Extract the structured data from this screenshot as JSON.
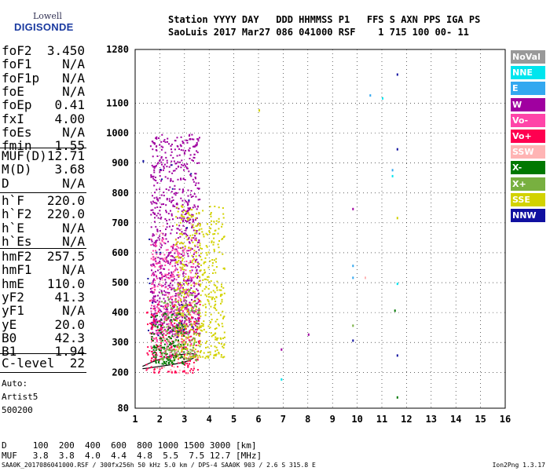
{
  "logo": {
    "line1": "Lowell",
    "line2": "DIGISONDE"
  },
  "header": {
    "labels": "Station YYYY DAY   DDD HHMMSS P1   FFS S AXN PPS IGA PS",
    "values": "SaoLuis 2017 Mar27 086 041000 RSF    1 715 100 00- 11"
  },
  "params_group1": [
    {
      "k": "foF2",
      "v": "3.450"
    },
    {
      "k": "foF1",
      "v": "N/A"
    },
    {
      "k": "foF1p",
      "v": "N/A"
    },
    {
      "k": "foE",
      "v": "N/A"
    },
    {
      "k": "foEp",
      "v": "0.41"
    },
    {
      "k": "fxI",
      "v": "4.00"
    },
    {
      "k": "foEs",
      "v": "N/A"
    },
    {
      "k": "fmin",
      "v": "1.55"
    }
  ],
  "params_group2": [
    {
      "k": "MUF(D)",
      "v": "12.71"
    },
    {
      "k": "M(D)",
      "v": "3.68"
    },
    {
      "k": "D",
      "v": "N/A"
    }
  ],
  "params_group3": [
    {
      "k": "h`F",
      "v": "220.0"
    },
    {
      "k": "h`F2",
      "v": "220.0"
    },
    {
      "k": "h`E",
      "v": "N/A"
    },
    {
      "k": "h`Es",
      "v": "N/A"
    }
  ],
  "params_group4": [
    {
      "k": "hmF2",
      "v": "257.5"
    },
    {
      "k": "hmF1",
      "v": "N/A"
    },
    {
      "k": "hmE",
      "v": "110.0"
    },
    {
      "k": "yF2",
      "v": "41.3"
    },
    {
      "k": "yF1",
      "v": "N/A"
    },
    {
      "k": "yE",
      "v": "20.0"
    },
    {
      "k": "B0",
      "v": "42.3"
    },
    {
      "k": "B1",
      "v": "1.94"
    }
  ],
  "params_group5": [
    {
      "k": "C-level",
      "v": "22"
    }
  ],
  "auto": [
    "Auto:",
    "Artist5",
    "500200"
  ],
  "legend": [
    {
      "label": "NoVal",
      "color": "#999999"
    },
    {
      "label": "NNE",
      "color": "#00e5ee"
    },
    {
      "label": "E",
      "color": "#33a8f0"
    },
    {
      "label": "W",
      "color": "#a000a0"
    },
    {
      "label": "Vo-",
      "color": "#ff44a8"
    },
    {
      "label": "Vo+",
      "color": "#ff0050"
    },
    {
      "label": "SSW",
      "color": "#ffb4b4"
    },
    {
      "label": "X-",
      "color": "#007800"
    },
    {
      "label": "X+",
      "color": "#78b040"
    },
    {
      "label": "SSE",
      "color": "#d2d200"
    },
    {
      "label": "NNW",
      "color": "#1010a0"
    }
  ],
  "chart_data": {
    "type": "scatter",
    "x_ticks": [
      "1",
      "2",
      "3",
      "4",
      "5",
      "6",
      "7",
      "8",
      "9",
      "10",
      "11",
      "12",
      "13",
      "14",
      "15",
      "16"
    ],
    "y_ticks": [
      "80",
      "200",
      "300",
      "400",
      "500",
      "600",
      "700",
      "800",
      "900",
      "1000",
      "1100",
      "1280"
    ],
    "xlim": [
      1,
      16
    ],
    "ylim": [
      80,
      1280
    ],
    "trace": {
      "x": [
        1.3,
        1.7,
        2.2,
        2.7,
        3.1,
        3.35,
        3.45,
        3.4,
        3.2,
        2.9,
        2.5,
        2.0,
        1.6,
        1.3
      ],
      "y": [
        220,
        235,
        250,
        258,
        262,
        262,
        258,
        250,
        240,
        232,
        226,
        220,
        215,
        212
      ]
    }
  },
  "bottom_table": {
    "row1": "D     100  200  400  600  800 1000 1500 3000 [km]",
    "row2": "MUF   3.8  3.8  4.0  4.4  4.8  5.5  7.5 12.7 [MHz]"
  },
  "footer": {
    "left": "SAA0K_2017086041000.RSF / 300fx256h 50 kHz 5.0 km / DPS-4 SAA0K 903 / 2.6 S 315.8 E",
    "right": "Ion2Png 1.3.17"
  }
}
